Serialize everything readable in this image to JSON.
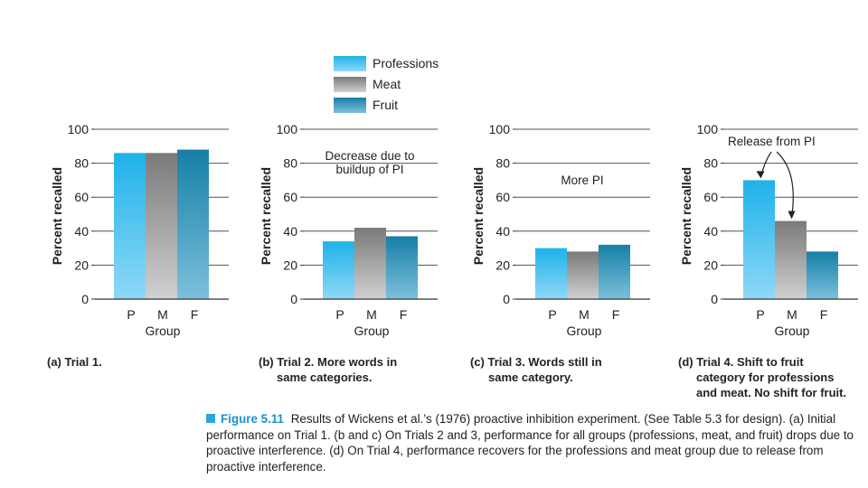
{
  "chart_data": [
    {
      "type": "bar",
      "categories": [
        "P",
        "M",
        "F"
      ],
      "values": [
        86,
        86,
        88
      ],
      "ylabel": "Percent recalled",
      "xlabel": "Group",
      "ylim": [
        0,
        100
      ],
      "yticks": [
        0,
        20,
        40,
        60,
        80,
        100
      ],
      "annotations": [],
      "caption_lines": [
        "(a) Trial 1."
      ]
    },
    {
      "type": "bar",
      "categories": [
        "P",
        "M",
        "F"
      ],
      "values": [
        34,
        42,
        37
      ],
      "ylabel": "Percent recalled",
      "xlabel": "Group",
      "ylim": [
        0,
        100
      ],
      "yticks": [
        0,
        20,
        40,
        60,
        80,
        100
      ],
      "annotations": [
        "Decrease due to",
        "buildup of PI"
      ],
      "caption_lines": [
        "(b) Trial 2. More words in",
        "same categories."
      ]
    },
    {
      "type": "bar",
      "categories": [
        "P",
        "M",
        "F"
      ],
      "values": [
        30,
        28,
        32
      ],
      "ylabel": "Percent recalled",
      "xlabel": "Group",
      "ylim": [
        0,
        100
      ],
      "yticks": [
        0,
        20,
        40,
        60,
        80,
        100
      ],
      "annotations": [
        "More PI"
      ],
      "caption_lines": [
        "(c) Trial 3. Words still in",
        "same category."
      ]
    },
    {
      "type": "bar",
      "categories": [
        "P",
        "M",
        "F"
      ],
      "values": [
        70,
        46,
        28
      ],
      "ylabel": "Percent recalled",
      "xlabel": "Group",
      "ylim": [
        0,
        100
      ],
      "yticks": [
        0,
        20,
        40,
        60,
        80,
        100
      ],
      "annotations": [
        "Release from PI"
      ],
      "caption_lines": [
        "(d) Trial 4. Shift to fruit",
        "category for professions",
        "and meat. No shift for fruit."
      ]
    }
  ],
  "legend": {
    "items": [
      {
        "label": "Professions",
        "top": "#1eb2ea",
        "bottom": "#8fd8f6"
      },
      {
        "label": "Meat",
        "top": "#7a7a7a",
        "bottom": "#d0d0d0"
      },
      {
        "label": "Fruit",
        "top": "#167fa6",
        "bottom": "#7cc0dc"
      }
    ]
  },
  "figure_caption": {
    "label": "Figure 5.11",
    "text": "Results of Wickens et al.’s (1976) proactive inhibition experiment. (See Table 5.3 for design). (a) Initial performance on Trial 1. (b and c) On Trials 2 and 3, performance for all groups (professions, meat, and fruit) drops due to proactive interference. (d) On Trial 4, performance recovers for the professions and meat group due to release from proactive interference."
  }
}
